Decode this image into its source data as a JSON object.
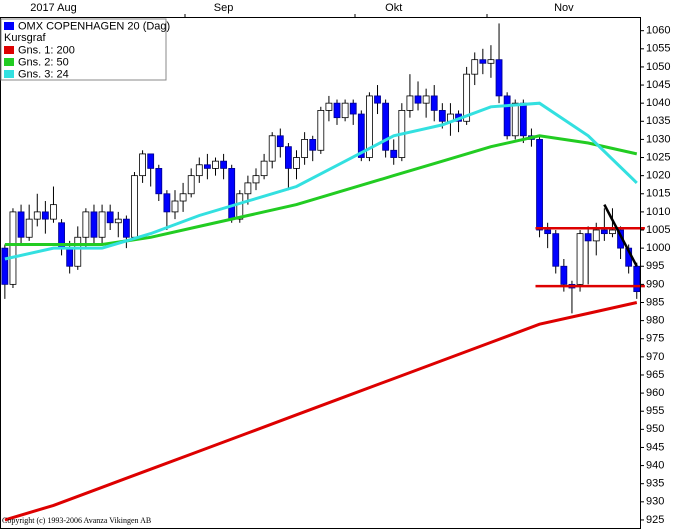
{
  "chart_data": {
    "type": "candlestick",
    "name": "OMX COPENHAGEN 20 (Dag)",
    "subtitle": "Kursgraf",
    "footer": "Copyright (c) 1993-2006 Avanza Vikingen AB",
    "color": "#0000ff",
    "up_color": "#ffffff",
    "down_color": "#0000ff",
    "categories": [
      null,
      null,
      null,
      null,
      null,
      null,
      "2017 Aug",
      null,
      null,
      null,
      null,
      null,
      null,
      null,
      null,
      null,
      null,
      null,
      null,
      null,
      null,
      null,
      null,
      null,
      null,
      null,
      null,
      "Sep",
      null,
      null,
      null,
      null,
      null,
      null,
      null,
      null,
      null,
      null,
      null,
      null,
      null,
      null,
      null,
      null,
      null,
      null,
      null,
      null,
      "Okt",
      null,
      null,
      null,
      null,
      null,
      null,
      null,
      null,
      null,
      null,
      null,
      null,
      null,
      null,
      null,
      null,
      null,
      null,
      null,
      null,
      "Nov",
      null,
      null,
      null,
      null,
      null,
      null,
      null,
      null,
      null
    ],
    "open": [
      1000,
      990,
      1010,
      1003,
      1008,
      1010,
      1008,
      1007,
      1000,
      995,
      1003,
      1010,
      1003,
      1010,
      1007,
      1008,
      1003,
      1020,
      1026,
      1022,
      1015,
      1010,
      1013,
      1015,
      1020,
      1023,
      1022,
      1024,
      1022,
      1008,
      1015,
      1018,
      1020,
      1024,
      1031,
      1028,
      1022,
      1025,
      1030,
      1027,
      1038,
      1040,
      1036,
      1040,
      1037,
      1025,
      1042,
      1040,
      1027,
      1025,
      1038,
      1042,
      1040,
      1042,
      1038,
      1035,
      1037,
      1035,
      1048,
      1052,
      1051,
      1052,
      1042,
      1031,
      1040,
      1031,
      1030,
      1005,
      1004,
      995,
      990,
      990,
      1004,
      1002,
      1005,
      1004,
      1005,
      1000,
      995
    ],
    "high": [
      1001,
      1011,
      1012,
      1012,
      1015,
      1013,
      1017,
      1008,
      1002,
      1006,
      1011,
      1012,
      1012,
      1012,
      1010,
      1009,
      1021,
      1027,
      1026,
      1023,
      1016,
      1016,
      1018,
      1022,
      1025,
      1026,
      1025,
      1026,
      1023,
      1016,
      1020,
      1022,
      1026,
      1032,
      1033,
      1029,
      1027,
      1032,
      1031,
      1039,
      1042,
      1041,
      1041,
      1041,
      1038,
      1043,
      1045,
      1041,
      1030,
      1040,
      1048,
      1046,
      1044,
      1045,
      1040,
      1040,
      1038,
      1050,
      1054,
      1055,
      1056,
      1062,
      1043,
      1041,
      1041,
      1033,
      1031,
      1007,
      1005,
      997,
      991,
      1005,
      1006,
      1007,
      1011,
      1011,
      1006,
      1001,
      996
    ],
    "low": [
      986,
      989,
      1001,
      1002,
      1006,
      1004,
      1007,
      998,
      993,
      994,
      1000,
      1001,
      1001,
      1005,
      1003,
      1000,
      1002,
      1018,
      1017,
      1013,
      1005,
      1008,
      1010,
      1014,
      1018,
      1019,
      1020,
      1019,
      1007,
      1007,
      1012,
      1016,
      1019,
      1022,
      1025,
      1016,
      1019,
      1023,
      1024,
      1026,
      1035,
      1034,
      1035,
      1034,
      1024,
      1024,
      1037,
      1025,
      1023,
      1024,
      1036,
      1038,
      1036,
      1035,
      1033,
      1031,
      1032,
      1034,
      1045,
      1048,
      1047,
      1040,
      1030,
      1030,
      1029,
      1028,
      1003,
      1000,
      993,
      988,
      982,
      988,
      990,
      998,
      1002,
      1003,
      997,
      993,
      986
    ],
    "close": [
      990,
      1010,
      1003,
      1008,
      1010,
      1008,
      1012,
      1000,
      995,
      1003,
      1010,
      1003,
      1010,
      1007,
      1008,
      1003,
      1020,
      1026,
      1022,
      1015,
      1010,
      1013,
      1015,
      1020,
      1023,
      1022,
      1024,
      1022,
      1008,
      1015,
      1018,
      1020,
      1024,
      1031,
      1028,
      1022,
      1025,
      1030,
      1027,
      1038,
      1040,
      1036,
      1040,
      1037,
      1025,
      1042,
      1040,
      1027,
      1025,
      1038,
      1042,
      1040,
      1042,
      1038,
      1035,
      1037,
      1035,
      1048,
      1052,
      1051,
      1052,
      1042,
      1031,
      1040,
      1031,
      1030,
      1005,
      1004,
      995,
      990,
      989,
      1004,
      1002,
      1005,
      1004,
      1005,
      1000,
      995,
      988
    ],
    "series": [
      {
        "name": "Gns. 1: 200",
        "color": "#dd0000",
        "x": [
          0,
          6,
          12,
          18,
          24,
          30,
          36,
          42,
          48,
          54,
          60,
          66,
          72,
          78
        ],
        "values": [
          925,
          929,
          934,
          939,
          944,
          949,
          954,
          959,
          964,
          969,
          974,
          979,
          982,
          985
        ]
      },
      {
        "name": "Gns. 2: 50",
        "color": "#22cc22",
        "x": [
          0,
          6,
          12,
          18,
          24,
          30,
          36,
          42,
          48,
          54,
          60,
          66,
          72,
          78
        ],
        "values": [
          1001,
          1001,
          1001,
          1003,
          1006,
          1009,
          1012,
          1016,
          1020,
          1024,
          1028,
          1031,
          1029,
          1026
        ]
      },
      {
        "name": "Gns. 3: 24",
        "color": "#33e0e0",
        "x": [
          0,
          6,
          12,
          18,
          24,
          30,
          36,
          42,
          48,
          54,
          60,
          66,
          72,
          78
        ],
        "values": [
          997,
          1000,
          1000,
          1004,
          1009,
          1013,
          1017,
          1024,
          1031,
          1034,
          1039,
          1040,
          1031,
          1018
        ]
      }
    ],
    "annotation_lines": [
      {
        "color": "#dd0000",
        "x": [
          66,
          78
        ],
        "values": [
          1005.5,
          1005.5
        ]
      },
      {
        "color": "#dd0000",
        "x": [
          66,
          78
        ],
        "values": [
          989.5,
          989.5
        ]
      },
      {
        "color": "#000000",
        "x": [
          74,
          78
        ],
        "values": [
          1012,
          995
        ]
      }
    ],
    "ylim": [
      922.5,
      1063.5
    ],
    "yticks": [
      925,
      930,
      935,
      940,
      945,
      950,
      955,
      960,
      965,
      970,
      975,
      980,
      985,
      990,
      995,
      1000,
      1005,
      1010,
      1015,
      1020,
      1025,
      1030,
      1035,
      1040,
      1045,
      1050,
      1055,
      1060
    ],
    "grid": false
  }
}
